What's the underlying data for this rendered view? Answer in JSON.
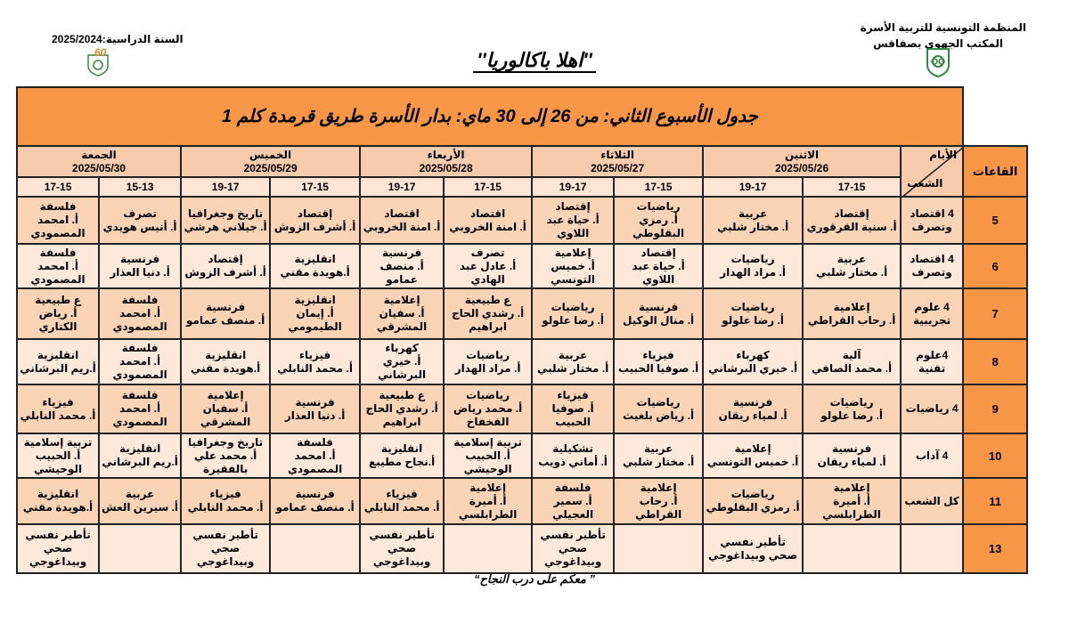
{
  "header": {
    "org_line1": "المنظمة التونسية للتربية الأسرة",
    "org_line2": "المكتب الجهوي بصفاقس",
    "school_year": "السنة الدراسية:2025/2024",
    "main_title": "''اهلا باكالوريا''",
    "left_logo_text": "60"
  },
  "table": {
    "title": "جدول الأسبوع الثاني: من 26 إلى 30 ماي: بدار الأسرة طريق قرمدة كلم 1",
    "rooms_label": "القاعات",
    "days_label": "الأيام",
    "branches_label": "الشعب",
    "days": [
      {
        "name": "الاثنين",
        "date": "2025/05/26",
        "times": [
          "17-15",
          "19-17"
        ]
      },
      {
        "name": "الثلاثاء",
        "date": "2025/05/27",
        "times": [
          "17-15",
          "19-17"
        ]
      },
      {
        "name": "الأربعاء",
        "date": "2025/05/28",
        "times": [
          "17-15",
          "19-17"
        ]
      },
      {
        "name": "الخميس",
        "date": "2025/05/29",
        "times": [
          "17-15",
          "19-17"
        ]
      },
      {
        "name": "الجمعة",
        "date": "2025/05/30",
        "times": [
          "15-13",
          "17-15"
        ]
      }
    ],
    "rows": [
      {
        "room": "5",
        "branch": "4 اقتصاد وتصرف",
        "cells": [
          {
            "subject": "إقتصاد",
            "teacher": "أ. سنية القرقوري"
          },
          {
            "subject": "عربية",
            "teacher": "أ. مختار شلبي"
          },
          {
            "subject": "رياضيات",
            "teacher": "أ. رمزي البقلوطي"
          },
          {
            "subject": "إقتصاد",
            "teacher": "أ. حياة عبد اللاوي"
          },
          {
            "subject": "اقتصاد",
            "teacher": "أ. امنة الخروبي"
          },
          {
            "subject": "اقتصاد",
            "teacher": "أ. امنة الخروبي"
          },
          {
            "subject": "إقتصاد",
            "teacher": "أ. أشرف الزوش"
          },
          {
            "subject": "تاريخ وجغرافيا",
            "teacher": "أ. جيلاني هرشي"
          },
          {
            "subject": "تصرف",
            "teacher": "أ. أنيس هويدي"
          },
          {
            "subject": "فلسفة",
            "teacher": "أ. امحمد المصمودي"
          }
        ]
      },
      {
        "room": "6",
        "branch": "4 اقتصاد وتصرف",
        "cells": [
          {
            "subject": "عربية",
            "teacher": "أ. مختار شلبي"
          },
          {
            "subject": "رياضيات",
            "teacher": "أ. مراد الهدار"
          },
          {
            "subject": "إقتصاد",
            "teacher": "أ. حياة عبد اللاوي"
          },
          {
            "subject": "إعلامية",
            "teacher": "أ. خميس التونسي"
          },
          {
            "subject": "تصرف",
            "teacher": "أ. عادل عبد الهادي"
          },
          {
            "subject": "فرنسية",
            "teacher": "أ. منصف عمامو"
          },
          {
            "subject": "انقليزية",
            "teacher": "أ.هويدة مقني"
          },
          {
            "subject": "إقتصاد",
            "teacher": "أ. أشرف الزوش"
          },
          {
            "subject": "فرنسية",
            "teacher": "أ. دنيا العذار"
          },
          {
            "subject": "فلسفة",
            "teacher": "أ. امحمد المصمودي"
          }
        ]
      },
      {
        "room": "7",
        "branch": "4 علوم تجريبية",
        "cells": [
          {
            "subject": "إعلامية",
            "teacher": "أ. رحاب القراطي"
          },
          {
            "subject": "رياضيات",
            "teacher": "أ. رضا علولو"
          },
          {
            "subject": "فرنسية",
            "teacher": "أ. منال الوكيل"
          },
          {
            "subject": "رياضيات",
            "teacher": "أ. رضا علولو"
          },
          {
            "subject": "ع طبيعية",
            "teacher": "أ. رشدي الحاج ابراهيم"
          },
          {
            "subject": "إعلامية",
            "teacher": "أ. سفيان المشرقي"
          },
          {
            "subject": "انقليزية",
            "teacher": "أ. إيمان الطيمومي"
          },
          {
            "subject": "فرنسية",
            "teacher": "أ. منصف عمامو"
          },
          {
            "subject": "فلسفة",
            "teacher": "أ. امحمد المصمودي"
          },
          {
            "subject": "ع طبيعية",
            "teacher": "أ. رياض الكتاري"
          }
        ]
      },
      {
        "room": "8",
        "branch": "4علوم تقنية",
        "cells": [
          {
            "subject": "آلية",
            "teacher": "أ.  محمد الصافي"
          },
          {
            "subject": "كهرباء",
            "teacher": "أ. خيري البرشاني"
          },
          {
            "subject": "فيزياء",
            "teacher": "أ. صوفيا الحبيب"
          },
          {
            "subject": "عربية",
            "teacher": "أ. مختار شلبي"
          },
          {
            "subject": "رياضيات",
            "teacher": "أ. مراد الهدار"
          },
          {
            "subject": "كهرباء",
            "teacher": "أ. خيري البرشاني"
          },
          {
            "subject": "فيزياء",
            "teacher": "أ. محمد النابلي"
          },
          {
            "subject": "انقليزية",
            "teacher": "أ.هويدة مقني"
          },
          {
            "subject": "فلسفة",
            "teacher": "أ. امحمد المصمودي"
          },
          {
            "subject": "انقليزية",
            "teacher": "أ.ريم البرشاني"
          }
        ]
      },
      {
        "room": "9",
        "branch": "4 رياضيات",
        "cells": [
          {
            "subject": "رياضيات",
            "teacher": "أ. رضا علولو"
          },
          {
            "subject": "فرنسية",
            "teacher": "أ. لمياء ريقان"
          },
          {
            "subject": "رياضيات",
            "teacher": "أ. رياض بلغيث"
          },
          {
            "subject": "فيزياء",
            "teacher": "أ. صوفيا الحبيب"
          },
          {
            "subject": "رياضيات",
            "teacher": "أ. محمد رياض الفخفاخ"
          },
          {
            "subject": "ع طبيعية",
            "teacher": "أ. رشدي الحاج ابراهيم"
          },
          {
            "subject": "فرنسية",
            "teacher": "أ. دنيا العذار"
          },
          {
            "subject": "إعلامية",
            "teacher": "أ. سفيان المشرقي"
          },
          {
            "subject": "فلسفة",
            "teacher": "أ. امحمد المصمودي"
          },
          {
            "subject": "فيزياء",
            "teacher": "أ. محمد النابلي"
          }
        ]
      },
      {
        "room": "10",
        "branch": "4 آداب",
        "cells": [
          {
            "subject": "فرنسية",
            "teacher": "أ. لمياء ريقان"
          },
          {
            "subject": "إعلامية",
            "teacher": "أ. خميس التونسي"
          },
          {
            "subject": "عربية",
            "teacher": "أ. مختار شلبي"
          },
          {
            "subject": "تشكيلية",
            "teacher": "أ. أماني ذويب"
          },
          {
            "subject": "تربية إسلامية",
            "teacher": "أ. الحبيب الوحيشي"
          },
          {
            "subject": "انقليزية",
            "teacher": "أ.نجاح مطيبع"
          },
          {
            "subject": "فلسفة",
            "teacher": "أ. امحمد المصمودي"
          },
          {
            "subject": "تاريخ وجغرافيا",
            "teacher": "أ. محمد علي بالفقيرة"
          },
          {
            "subject": "انقليزية",
            "teacher": "أ.ريم البرشاني"
          },
          {
            "subject": "تربية إسلامية",
            "teacher": "أ. الحبيب الوحيشي"
          }
        ]
      },
      {
        "room": "11",
        "branch": "كل الشعب",
        "cells": [
          {
            "subject": "إعلامية",
            "teacher": "أ. أميرة الطرابلسي"
          },
          {
            "subject": "رياضيات",
            "teacher": "أ. رمزي البقلوطي"
          },
          {
            "subject": "إعلامية",
            "teacher": "أ. رحاب القراطي"
          },
          {
            "subject": "فلسفة",
            "teacher": "أ. سمير العجيلي"
          },
          {
            "subject": "إعلامية",
            "teacher": "أ. أميرة الطرابلسي"
          },
          {
            "subject": "فيزياء",
            "teacher": "أ. محمد النابلي"
          },
          {
            "subject": "فرنسية",
            "teacher": "أ. منصف عمامو"
          },
          {
            "subject": "فيزياء",
            "teacher": "أ. محمد النابلي"
          },
          {
            "subject": "عربية",
            "teacher": "أ. سيرين العش"
          },
          {
            "subject": "انقليزية",
            "teacher": "أ.هويدة مقني"
          }
        ]
      },
      {
        "room": "13",
        "branch": "",
        "cells": [
          {
            "subject": "",
            "teacher": ""
          },
          {
            "subject": "تأطير نفسي",
            "teacher": "صحي وبيداغوجي"
          },
          {
            "subject": "",
            "teacher": ""
          },
          {
            "subject": "تأطير نفسي",
            "teacher": "صحي وبيداغوجي"
          },
          {
            "subject": "",
            "teacher": ""
          },
          {
            "subject": "تأطير نفسي",
            "teacher": "صحي وبيداغوجي"
          },
          {
            "subject": "",
            "teacher": ""
          },
          {
            "subject": "تأطير نفسي",
            "teacher": "صحي وبيداغوجي"
          },
          {
            "subject": "",
            "teacher": ""
          },
          {
            "subject": "تأطير نفسي",
            "teacher": "صحي وبيداغوجي"
          }
        ]
      }
    ]
  },
  "footer": {
    "text": "” معكم على درب النجاح“"
  },
  "colors": {
    "orange": "#f79646",
    "peach": "#f8cbad",
    "row_dark": "#f9d3b6",
    "row_light": "#fde9dc",
    "logo_green": "#2e8b3e"
  }
}
